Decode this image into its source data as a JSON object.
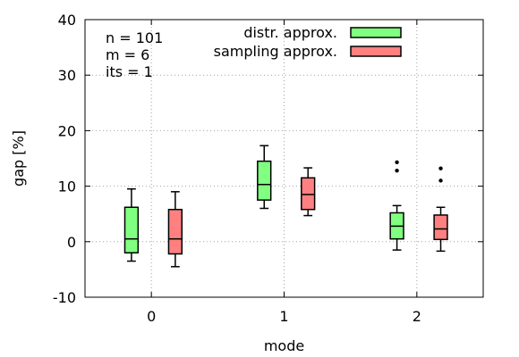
{
  "chart_data": {
    "type": "boxplot",
    "xlabel": "mode",
    "ylabel": "gap [%]",
    "categories": [
      "0",
      "1",
      "2"
    ],
    "ylim": [
      -10,
      40
    ],
    "yticks": [
      -10,
      0,
      10,
      20,
      30,
      40
    ],
    "grid": true,
    "legend_position": "top-right",
    "annotations": [
      "n = 101",
      "m = 6",
      "its = 1"
    ],
    "series": [
      {
        "name": "distr. approx.",
        "color": "#80ff80",
        "boxes": [
          {
            "category": "0",
            "whisker_low": -3.5,
            "q1": -2.0,
            "median": 0.5,
            "q3": 6.2,
            "whisker_high": 9.5,
            "outliers": []
          },
          {
            "category": "1",
            "whisker_low": 6.0,
            "q1": 7.5,
            "median": 10.3,
            "q3": 14.5,
            "whisker_high": 17.3,
            "outliers": []
          },
          {
            "category": "2",
            "whisker_low": -1.5,
            "q1": 0.5,
            "median": 2.8,
            "q3": 5.2,
            "whisker_high": 6.5,
            "outliers": [
              12.8,
              14.3
            ]
          }
        ]
      },
      {
        "name": "sampling approx.",
        "color": "#ff8080",
        "boxes": [
          {
            "category": "0",
            "whisker_low": -4.5,
            "q1": -2.2,
            "median": 0.5,
            "q3": 5.8,
            "whisker_high": 9.0,
            "outliers": []
          },
          {
            "category": "1",
            "whisker_low": 4.7,
            "q1": 5.8,
            "median": 8.5,
            "q3": 11.5,
            "whisker_high": 13.3,
            "outliers": []
          },
          {
            "category": "2",
            "whisker_low": -1.7,
            "q1": 0.4,
            "median": 2.3,
            "q3": 4.8,
            "whisker_high": 6.2,
            "outliers": [
              11.0,
              13.2
            ]
          }
        ]
      }
    ]
  }
}
